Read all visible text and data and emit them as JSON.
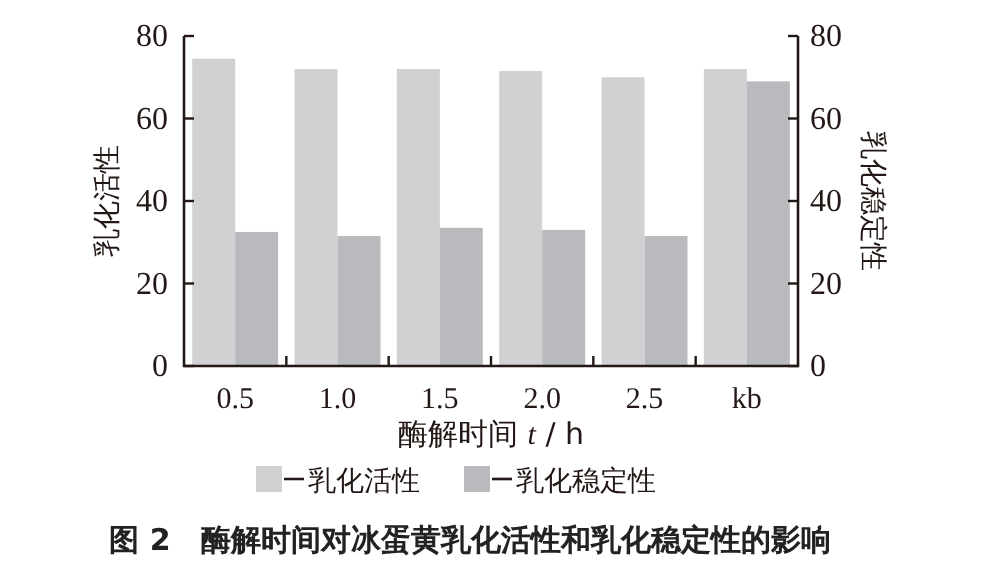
{
  "chart_data": {
    "type": "bar",
    "title": "图 2　酶解时间对冰蛋黄乳化活性和乳化稳定性的影响",
    "xlabel": "酶解时间 *t* / h",
    "ylabel": "乳化活性",
    "y2label": "乳化稳定性",
    "categories": [
      "0.5",
      "1.0",
      "1.5",
      "2.0",
      "2.5",
      "kb"
    ],
    "series": [
      {
        "name": "乳化活性",
        "color": "#d0d1d3",
        "values": [
          74.5,
          72,
          72,
          71.5,
          70,
          72
        ]
      },
      {
        "name": "乳化稳定性",
        "color": "#b9babd",
        "axis": "y2",
        "values": [
          32.5,
          31.5,
          33.5,
          33,
          31.5,
          69
        ]
      }
    ],
    "ylim": [
      0,
      80
    ],
    "yticks": [
      0,
      20,
      40,
      60,
      80
    ],
    "y2lim": [
      0,
      80
    ],
    "y2ticks": [
      0,
      20,
      40,
      60,
      80
    ],
    "legend": "bottom",
    "grid": false
  }
}
